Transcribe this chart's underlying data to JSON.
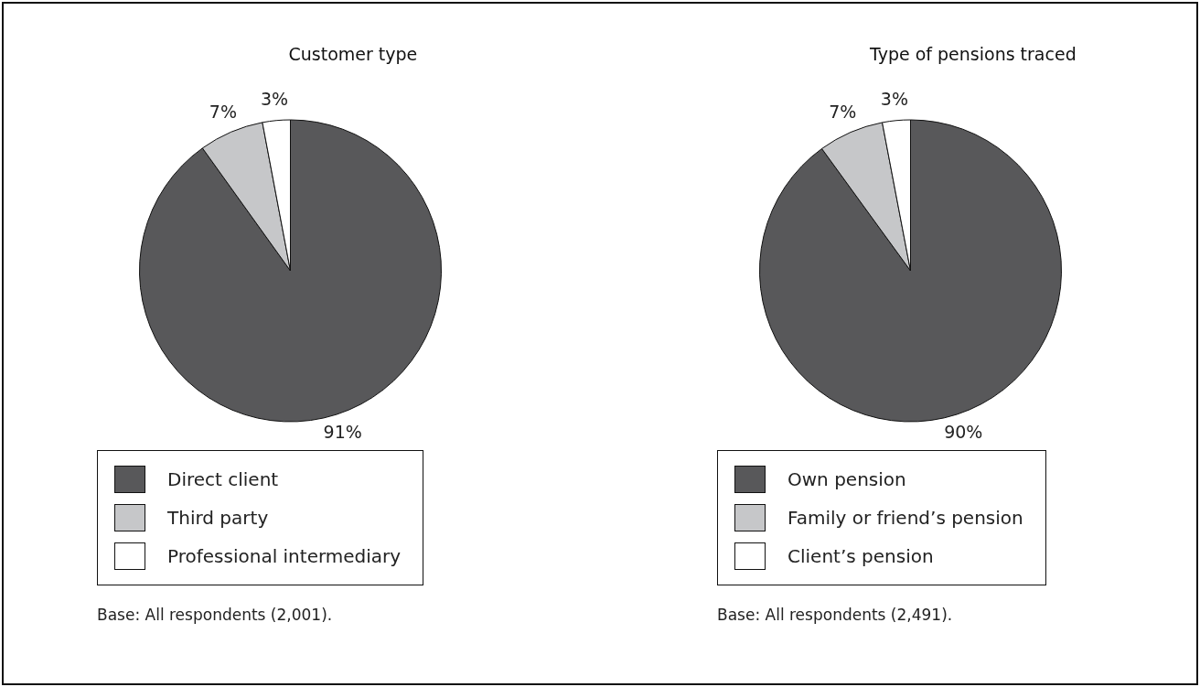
{
  "chart_data": [
    {
      "type": "pie",
      "title": "Customer type",
      "categories": [
        "Direct client",
        "Third party",
        "Professional intermediary"
      ],
      "values": [
        91,
        7,
        3
      ],
      "value_labels": [
        "91%",
        "7%",
        "3%"
      ],
      "colors": [
        "#58585a",
        "#c6c7c9",
        "#ffffff"
      ],
      "legend": "bottom",
      "annotations": [
        "Base: All respondents (2,001)."
      ]
    },
    {
      "type": "pie",
      "title": "Type of pensions traced",
      "categories": [
        "Own pension",
        "Family or friend’s pension",
        "Client’s pension"
      ],
      "values": [
        90,
        7,
        3
      ],
      "value_labels": [
        "90%",
        "7%",
        "3%"
      ],
      "colors": [
        "#58585a",
        "#c6c7c9",
        "#ffffff"
      ],
      "legend": "bottom",
      "annotations": [
        "Base: All respondents (2,491)."
      ]
    }
  ]
}
